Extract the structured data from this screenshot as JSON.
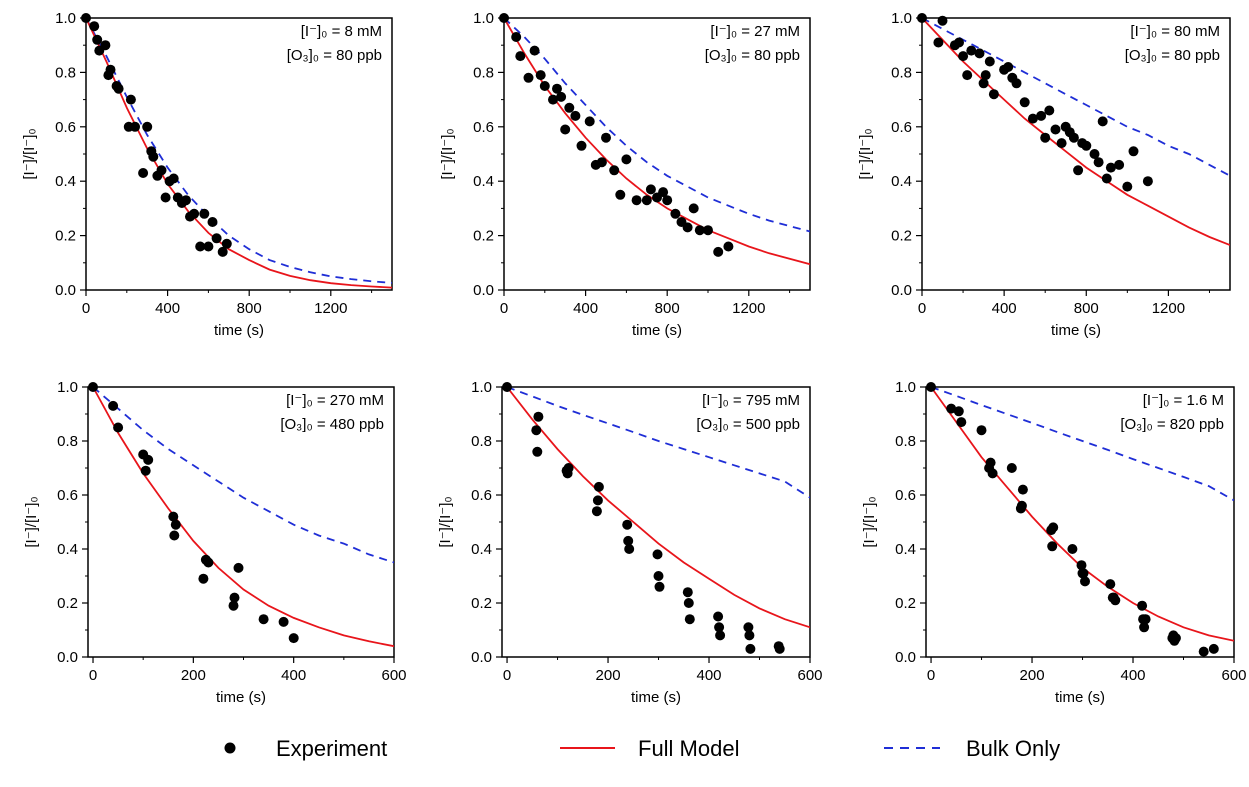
{
  "legend": {
    "experiment_label": "Experiment",
    "full_model_label": "Full Model",
    "bulk_only_label": "Bulk Only"
  },
  "colors": {
    "experiment": "#000000",
    "full_model": "#e8151b",
    "bulk_only": "#1f2ed6"
  },
  "chart_data": [
    {
      "type": "scatter",
      "xlabel": "time (s)",
      "ylabel": "[I⁻]/[I⁻]₀",
      "xlim": [
        0,
        1500
      ],
      "ylim": [
        0,
        1.0
      ],
      "xticks": [
        0,
        400,
        800,
        1200
      ],
      "yticks": [
        0.0,
        0.2,
        0.4,
        0.6,
        0.8,
        1.0
      ],
      "annotation": [
        "[I⁻]₀ = 8 mM",
        "[O₃]₀ = 80 ppb"
      ],
      "series": [
        {
          "name": "Experiment",
          "x": [
            0,
            40,
            55,
            65,
            95,
            110,
            120,
            150,
            160,
            210,
            220,
            240,
            280,
            300,
            320,
            330,
            350,
            370,
            390,
            410,
            430,
            450,
            470,
            490,
            510,
            530,
            560,
            580,
            600,
            620,
            640,
            670,
            690
          ],
          "y": [
            1.0,
            0.97,
            0.92,
            0.88,
            0.9,
            0.79,
            0.81,
            0.75,
            0.74,
            0.6,
            0.7,
            0.6,
            0.43,
            0.6,
            0.51,
            0.49,
            0.42,
            0.44,
            0.34,
            0.4,
            0.41,
            0.34,
            0.32,
            0.33,
            0.27,
            0.28,
            0.16,
            0.28,
            0.16,
            0.25,
            0.19,
            0.14,
            0.17
          ]
        },
        {
          "name": "Full Model",
          "x": [
            0,
            100,
            200,
            300,
            400,
            500,
            600,
            700,
            800,
            900,
            1000,
            1100,
            1200,
            1300,
            1400,
            1500
          ],
          "y": [
            1.0,
            0.84,
            0.67,
            0.52,
            0.39,
            0.29,
            0.21,
            0.15,
            0.11,
            0.075,
            0.052,
            0.036,
            0.025,
            0.018,
            0.013,
            0.009
          ]
        },
        {
          "name": "Bulk Only",
          "x": [
            0,
            100,
            200,
            300,
            400,
            500,
            600,
            700,
            800,
            900,
            1000,
            1100,
            1200,
            1300,
            1400,
            1500
          ],
          "y": [
            1.0,
            0.86,
            0.71,
            0.57,
            0.45,
            0.35,
            0.27,
            0.2,
            0.15,
            0.11,
            0.085,
            0.065,
            0.05,
            0.04,
            0.032,
            0.026
          ]
        }
      ]
    },
    {
      "type": "scatter",
      "xlabel": "time (s)",
      "ylabel": "[I⁻]/[I⁻]₀",
      "xlim": [
        0,
        1500
      ],
      "ylim": [
        0,
        1.0
      ],
      "xticks": [
        0,
        400,
        800,
        1200
      ],
      "yticks": [
        0.0,
        0.2,
        0.4,
        0.6,
        0.8,
        1.0
      ],
      "annotation": [
        "[I⁻]₀ = 27 mM",
        "[O₃]₀ = 80 ppb"
      ],
      "series": [
        {
          "name": "Experiment",
          "x": [
            0,
            60,
            80,
            120,
            150,
            180,
            200,
            240,
            260,
            280,
            300,
            320,
            350,
            380,
            420,
            450,
            480,
            500,
            540,
            570,
            600,
            650,
            700,
            720,
            750,
            780,
            800,
            840,
            870,
            900,
            930,
            960,
            1000,
            1050,
            1100
          ],
          "y": [
            1.0,
            0.93,
            0.86,
            0.78,
            0.88,
            0.79,
            0.75,
            0.7,
            0.74,
            0.71,
            0.59,
            0.67,
            0.64,
            0.53,
            0.62,
            0.46,
            0.47,
            0.56,
            0.44,
            0.35,
            0.48,
            0.33,
            0.33,
            0.37,
            0.34,
            0.36,
            0.33,
            0.28,
            0.25,
            0.23,
            0.3,
            0.22,
            0.22,
            0.14,
            0.16
          ]
        },
        {
          "name": "Full Model",
          "x": [
            0,
            100,
            200,
            300,
            400,
            500,
            600,
            700,
            800,
            900,
            1000,
            1100,
            1200,
            1300,
            1400,
            1500
          ],
          "y": [
            1.0,
            0.87,
            0.75,
            0.65,
            0.56,
            0.48,
            0.41,
            0.35,
            0.3,
            0.26,
            0.22,
            0.19,
            0.16,
            0.135,
            0.115,
            0.095
          ]
        },
        {
          "name": "Bulk Only",
          "x": [
            0,
            100,
            200,
            300,
            400,
            500,
            600,
            700,
            800,
            900,
            1000,
            1100,
            1200,
            1300,
            1400,
            1500
          ],
          "y": [
            1.0,
            0.93,
            0.85,
            0.76,
            0.68,
            0.6,
            0.53,
            0.47,
            0.42,
            0.38,
            0.34,
            0.31,
            0.28,
            0.255,
            0.235,
            0.215
          ]
        }
      ]
    },
    {
      "type": "scatter",
      "xlabel": "time (s)",
      "ylabel": "[I⁻]/[I⁻]₀",
      "xlim": [
        0,
        1500
      ],
      "ylim": [
        0,
        1.0
      ],
      "xticks": [
        0,
        400,
        800,
        1200
      ],
      "yticks": [
        0.0,
        0.2,
        0.4,
        0.6,
        0.8,
        1.0
      ],
      "annotation": [
        "[I⁻]₀ = 80 mM",
        "[O₃]₀ = 80 ppb"
      ],
      "series": [
        {
          "name": "Experiment",
          "x": [
            0,
            80,
            100,
            160,
            180,
            200,
            220,
            240,
            280,
            300,
            310,
            330,
            350,
            400,
            420,
            440,
            460,
            500,
            540,
            580,
            600,
            620,
            650,
            680,
            700,
            720,
            740,
            760,
            780,
            800,
            840,
            860,
            880,
            900,
            920,
            960,
            1000,
            1030,
            1100
          ],
          "y": [
            1.0,
            0.91,
            0.99,
            0.9,
            0.91,
            0.86,
            0.79,
            0.88,
            0.87,
            0.76,
            0.79,
            0.84,
            0.72,
            0.81,
            0.82,
            0.78,
            0.76,
            0.69,
            0.63,
            0.64,
            0.56,
            0.66,
            0.59,
            0.54,
            0.6,
            0.58,
            0.56,
            0.44,
            0.54,
            0.53,
            0.5,
            0.47,
            0.62,
            0.41,
            0.45,
            0.46,
            0.38,
            0.51,
            0.4
          ]
        },
        {
          "name": "Full Model",
          "x": [
            0,
            100,
            200,
            300,
            400,
            500,
            600,
            700,
            800,
            900,
            1000,
            1100,
            1200,
            1300,
            1400,
            1500
          ],
          "y": [
            1.0,
            0.92,
            0.84,
            0.77,
            0.7,
            0.63,
            0.57,
            0.51,
            0.45,
            0.4,
            0.35,
            0.31,
            0.27,
            0.23,
            0.195,
            0.165
          ]
        },
        {
          "name": "Bulk Only",
          "x": [
            0,
            100,
            200,
            300,
            400,
            500,
            600,
            700,
            800,
            900,
            1000,
            1100,
            1200,
            1300,
            1400,
            1500
          ],
          "y": [
            1.0,
            0.96,
            0.92,
            0.88,
            0.84,
            0.8,
            0.76,
            0.72,
            0.68,
            0.64,
            0.6,
            0.57,
            0.53,
            0.5,
            0.46,
            0.42
          ]
        }
      ]
    },
    {
      "type": "scatter",
      "xlabel": "time (s)",
      "ylabel": "[I⁻]/[I⁻]₀",
      "xlim": [
        -10,
        600
      ],
      "ylim": [
        0,
        1.0
      ],
      "xticks": [
        0,
        200,
        400,
        600
      ],
      "yticks": [
        0.0,
        0.2,
        0.4,
        0.6,
        0.8,
        1.0
      ],
      "annotation": [
        "[I⁻]₀ = 270 mM",
        "[O₃]₀ = 480 ppb"
      ],
      "series": [
        {
          "name": "Experiment",
          "x": [
            0,
            40,
            50,
            100,
            105,
            110,
            160,
            162,
            165,
            220,
            225,
            230,
            280,
            282,
            290,
            340,
            380,
            400
          ],
          "y": [
            1.0,
            0.93,
            0.85,
            0.75,
            0.69,
            0.73,
            0.52,
            0.45,
            0.49,
            0.29,
            0.36,
            0.35,
            0.19,
            0.22,
            0.33,
            0.14,
            0.13,
            0.07
          ]
        },
        {
          "name": "Full Model",
          "x": [
            0,
            50,
            100,
            150,
            200,
            250,
            300,
            350,
            400,
            450,
            500,
            550,
            600
          ],
          "y": [
            1.0,
            0.83,
            0.68,
            0.55,
            0.43,
            0.33,
            0.25,
            0.19,
            0.145,
            0.11,
            0.08,
            0.058,
            0.04
          ]
        },
        {
          "name": "Bulk Only",
          "x": [
            0,
            50,
            100,
            150,
            200,
            250,
            300,
            350,
            400,
            450,
            500,
            550,
            600
          ],
          "y": [
            1.0,
            0.92,
            0.84,
            0.77,
            0.71,
            0.65,
            0.59,
            0.54,
            0.49,
            0.45,
            0.42,
            0.38,
            0.35
          ]
        }
      ]
    },
    {
      "type": "scatter",
      "xlabel": "time (s)",
      "ylabel": "[I⁻]/[I⁻]₀",
      "xlim": [
        -10,
        600
      ],
      "ylim": [
        0,
        1.0
      ],
      "xticks": [
        0,
        200,
        400,
        600
      ],
      "yticks": [
        0.0,
        0.2,
        0.4,
        0.6,
        0.8,
        1.0
      ],
      "annotation": [
        "[I⁻]₀ = 795 mM",
        "[O₃]₀ = 500 ppb"
      ],
      "series": [
        {
          "name": "Experiment",
          "x": [
            0,
            58,
            60,
            62,
            118,
            120,
            122,
            178,
            180,
            182,
            238,
            240,
            242,
            298,
            300,
            302,
            358,
            360,
            362,
            418,
            420,
            422,
            478,
            480,
            482,
            538,
            540
          ],
          "y": [
            1.0,
            0.84,
            0.76,
            0.89,
            0.69,
            0.68,
            0.7,
            0.54,
            0.58,
            0.63,
            0.49,
            0.43,
            0.4,
            0.38,
            0.3,
            0.26,
            0.24,
            0.2,
            0.14,
            0.15,
            0.11,
            0.08,
            0.11,
            0.08,
            0.03,
            0.04,
            0.03
          ]
        },
        {
          "name": "Full Model",
          "x": [
            0,
            50,
            100,
            150,
            200,
            250,
            300,
            350,
            400,
            450,
            500,
            550,
            600
          ],
          "y": [
            1.0,
            0.88,
            0.77,
            0.67,
            0.58,
            0.5,
            0.42,
            0.35,
            0.29,
            0.23,
            0.18,
            0.14,
            0.11
          ]
        },
        {
          "name": "Bulk Only",
          "x": [
            0,
            50,
            100,
            150,
            200,
            250,
            300,
            350,
            400,
            450,
            500,
            550,
            600
          ],
          "y": [
            1.0,
            0.965,
            0.93,
            0.897,
            0.865,
            0.833,
            0.8,
            0.77,
            0.74,
            0.71,
            0.68,
            0.65,
            0.59
          ]
        }
      ]
    },
    {
      "type": "scatter",
      "xlabel": "time (s)",
      "ylabel": "[I⁻]/[I⁻]₀",
      "xlim": [
        -10,
        600
      ],
      "ylim": [
        0,
        1.0
      ],
      "xticks": [
        0,
        200,
        400,
        600
      ],
      "yticks": [
        0.0,
        0.2,
        0.4,
        0.6,
        0.8,
        1.0
      ],
      "annotation": [
        "[I⁻]₀ = 1.6 M",
        "[O₃]₀ = 820 ppb"
      ],
      "series": [
        {
          "name": "Experiment",
          "x": [
            0,
            40,
            55,
            60,
            100,
            115,
            118,
            122,
            160,
            178,
            180,
            182,
            238,
            240,
            242,
            280,
            298,
            300,
            302,
            305,
            355,
            360,
            362,
            365,
            418,
            420,
            422,
            425,
            478,
            480,
            482,
            485,
            540,
            560
          ],
          "y": [
            1.0,
            0.92,
            0.91,
            0.87,
            0.84,
            0.7,
            0.72,
            0.68,
            0.7,
            0.55,
            0.56,
            0.62,
            0.47,
            0.41,
            0.48,
            0.4,
            0.34,
            0.31,
            0.31,
            0.28,
            0.27,
            0.22,
            0.22,
            0.21,
            0.19,
            0.14,
            0.11,
            0.14,
            0.07,
            0.08,
            0.06,
            0.07,
            0.02,
            0.03
          ]
        },
        {
          "name": "Full Model",
          "x": [
            0,
            50,
            100,
            150,
            200,
            250,
            300,
            350,
            400,
            450,
            500,
            550,
            600
          ],
          "y": [
            1.0,
            0.87,
            0.74,
            0.63,
            0.52,
            0.42,
            0.33,
            0.26,
            0.2,
            0.15,
            0.11,
            0.08,
            0.06
          ]
        },
        {
          "name": "Bulk Only",
          "x": [
            0,
            50,
            100,
            150,
            200,
            250,
            300,
            350,
            400,
            450,
            500,
            550,
            600
          ],
          "y": [
            1.0,
            0.967,
            0.933,
            0.9,
            0.867,
            0.833,
            0.8,
            0.767,
            0.733,
            0.7,
            0.667,
            0.633,
            0.58
          ]
        }
      ]
    }
  ]
}
